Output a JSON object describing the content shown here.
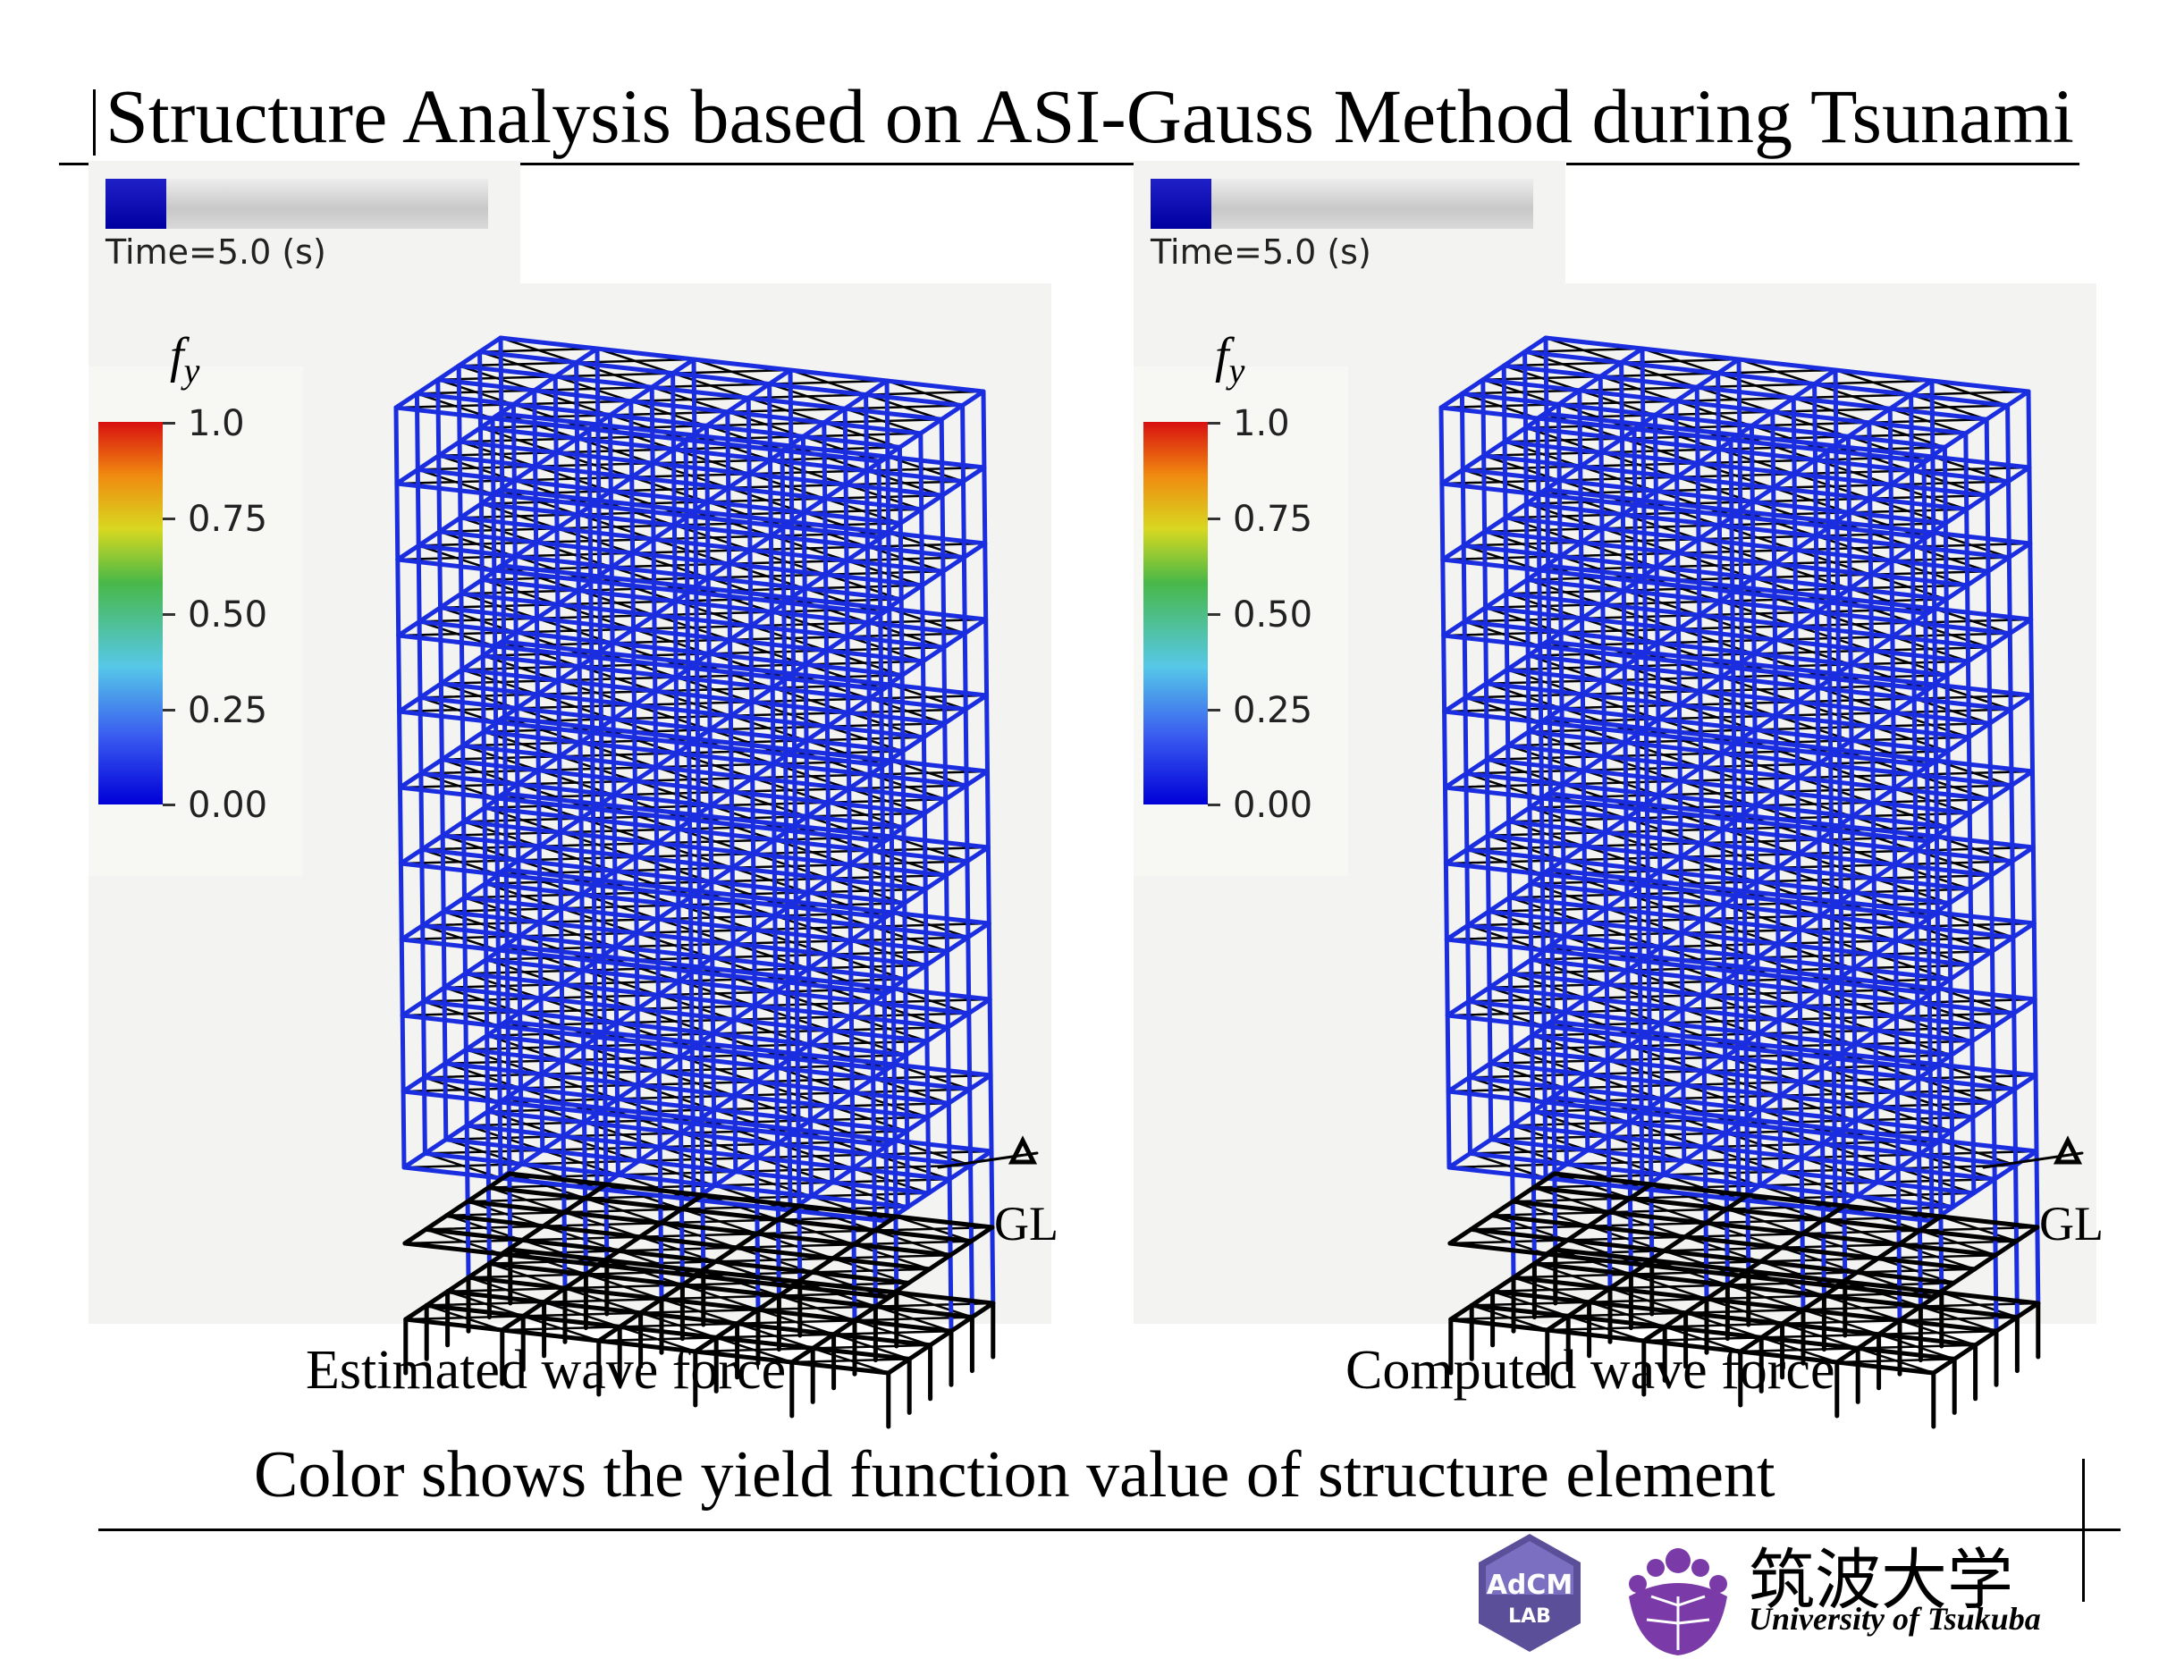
{
  "slide": {
    "title": "Structure Analysis based on ASI-Gauss Method during Tsunami",
    "bottom_message": "Color shows the yield function value of structure element"
  },
  "panels": [
    {
      "time_label": "Time=5.0 (s)",
      "progress": 0.16,
      "legend_symbol": "f",
      "legend_subscript": "y",
      "colorbar_ticks": [
        "1.0",
        "0.75",
        "0.50",
        "0.25",
        "0.00"
      ],
      "ground_label": "GL",
      "caption": "Estimated wave force"
    },
    {
      "time_label": "Time=5.0 (s)",
      "progress": 0.16,
      "legend_symbol": "f",
      "legend_subscript": "y",
      "colorbar_ticks": [
        "1.0",
        "0.75",
        "0.50",
        "0.25",
        "0.00"
      ],
      "ground_label": "GL",
      "caption": "Computed wave force"
    }
  ],
  "logos": {
    "lab_line1": "AdCM",
    "lab_line2": "LAB",
    "university_jp": "筑波大学",
    "university_en": "University of Tsukuba"
  },
  "colors": {
    "frame_blue": "#1a2ee0",
    "frame_black": "#000000",
    "logo_purple": "#7a3aa8"
  }
}
